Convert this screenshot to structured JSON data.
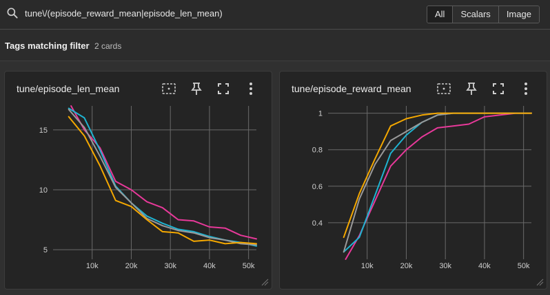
{
  "search": {
    "query": "tune\\/(episode_reward_mean|episode_len_mean)"
  },
  "filters": {
    "all": "All",
    "scalars": "Scalars",
    "image": "Image",
    "active": "All"
  },
  "tags": {
    "title": "Tags matching filter",
    "count": "2 cards"
  },
  "colors": {
    "background": "#303030",
    "card": "#242424",
    "grid": "#6a6a6a",
    "series_magenta": "#e8399a",
    "series_cyan": "#1fb3d1",
    "series_gray": "#9a9a9a",
    "series_orange": "#f5a800"
  },
  "cards": [
    {
      "title": "tune/episode_len_mean",
      "icons": [
        "fit-domain-icon",
        "pin-icon",
        "fullscreen-icon",
        "more-vert-icon"
      ],
      "chart_data": {
        "type": "line",
        "title": "tune/episode_len_mean",
        "xlabel": "",
        "ylabel": "",
        "x_ticks": [
          "10k",
          "20k",
          "30k",
          "40k",
          "50k"
        ],
        "y_ticks": [
          "5",
          "10",
          "15"
        ],
        "xlim": [
          0,
          52000
        ],
        "ylim": [
          4.2,
          17.0
        ],
        "grid": true,
        "series": [
          {
            "color": "#e8399a",
            "points": [
              [
                4600,
                17.0
              ],
              [
                8000,
                15.0
              ],
              [
                12000,
                13.5
              ],
              [
                16000,
                10.7
              ],
              [
                20000,
                10.0
              ],
              [
                24000,
                9.0
              ],
              [
                28000,
                8.5
              ],
              [
                32000,
                7.5
              ],
              [
                36000,
                7.4
              ],
              [
                40000,
                6.9
              ],
              [
                44000,
                6.8
              ],
              [
                48000,
                6.2
              ],
              [
                52000,
                5.9
              ]
            ]
          },
          {
            "color": "#1fb3d1",
            "points": [
              [
                4000,
                16.8
              ],
              [
                8000,
                16.0
              ],
              [
                12000,
                13.3
              ],
              [
                16000,
                10.3
              ],
              [
                20000,
                8.9
              ],
              [
                24000,
                7.8
              ],
              [
                28000,
                7.2
              ],
              [
                32000,
                6.7
              ],
              [
                36000,
                6.5
              ],
              [
                40000,
                6.1
              ],
              [
                44000,
                5.8
              ],
              [
                48000,
                5.6
              ],
              [
                52000,
                5.3
              ]
            ]
          },
          {
            "color": "#9a9a9a",
            "points": [
              [
                4000,
                16.7
              ],
              [
                8000,
                15.2
              ],
              [
                12000,
                12.8
              ],
              [
                16000,
                10.2
              ],
              [
                20000,
                8.9
              ],
              [
                24000,
                7.6
              ],
              [
                28000,
                7.0
              ],
              [
                32000,
                6.6
              ],
              [
                36000,
                6.4
              ],
              [
                40000,
                6.0
              ],
              [
                44000,
                5.8
              ],
              [
                48000,
                5.5
              ],
              [
                52000,
                5.4
              ]
            ]
          },
          {
            "color": "#f5a800",
            "points": [
              [
                4000,
                16.1
              ],
              [
                8000,
                14.5
              ],
              [
                12000,
                12.0
              ],
              [
                16000,
                9.1
              ],
              [
                20000,
                8.6
              ],
              [
                24000,
                7.5
              ],
              [
                28000,
                6.5
              ],
              [
                32000,
                6.4
              ],
              [
                36000,
                5.7
              ],
              [
                40000,
                5.8
              ],
              [
                44000,
                5.5
              ],
              [
                48000,
                5.6
              ],
              [
                52000,
                5.5
              ]
            ]
          }
        ]
      }
    },
    {
      "title": "tune/episode_reward_mean",
      "icons": [
        "fit-domain-icon",
        "pin-icon",
        "fullscreen-icon",
        "more-vert-icon"
      ],
      "chart_data": {
        "type": "line",
        "title": "tune/episode_reward_mean",
        "xlabel": "",
        "ylabel": "",
        "x_ticks": [
          "10k",
          "20k",
          "30k",
          "40k",
          "50k"
        ],
        "y_ticks": [
          "0.4",
          "0.6",
          "0.8",
          "1"
        ],
        "xlim": [
          0,
          52000
        ],
        "ylim": [
          0.2,
          1.04
        ],
        "grid": true,
        "series": [
          {
            "color": "#e8399a",
            "points": [
              [
                4500,
                0.2
              ],
              [
                8000,
                0.33
              ],
              [
                12000,
                0.52
              ],
              [
                16000,
                0.71
              ],
              [
                20000,
                0.8
              ],
              [
                24000,
                0.87
              ],
              [
                28000,
                0.92
              ],
              [
                32000,
                0.93
              ],
              [
                36000,
                0.94
              ],
              [
                40000,
                0.98
              ],
              [
                44000,
                0.99
              ],
              [
                48000,
                1.0
              ],
              [
                52000,
                1.0
              ]
            ]
          },
          {
            "color": "#1fb3d1",
            "points": [
              [
                4000,
                0.24
              ],
              [
                8000,
                0.32
              ],
              [
                12000,
                0.55
              ],
              [
                16000,
                0.78
              ],
              [
                20000,
                0.88
              ],
              [
                24000,
                0.95
              ],
              [
                28000,
                0.99
              ],
              [
                32000,
                1.0
              ],
              [
                36000,
                1.0
              ],
              [
                40000,
                1.0
              ],
              [
                44000,
                1.0
              ],
              [
                48000,
                1.0
              ],
              [
                52000,
                1.0
              ]
            ]
          },
          {
            "color": "#9a9a9a",
            "points": [
              [
                4000,
                0.24
              ],
              [
                8000,
                0.53
              ],
              [
                12000,
                0.72
              ],
              [
                16000,
                0.85
              ],
              [
                20000,
                0.9
              ],
              [
                24000,
                0.95
              ],
              [
                28000,
                0.99
              ],
              [
                32000,
                1.0
              ],
              [
                36000,
                1.0
              ],
              [
                40000,
                1.0
              ],
              [
                44000,
                1.0
              ],
              [
                48000,
                1.0
              ],
              [
                52000,
                1.0
              ]
            ]
          },
          {
            "color": "#f5a800",
            "points": [
              [
                4000,
                0.32
              ],
              [
                8000,
                0.56
              ],
              [
                12000,
                0.75
              ],
              [
                16000,
                0.93
              ],
              [
                20000,
                0.97
              ],
              [
                24000,
                0.99
              ],
              [
                28000,
                1.0
              ],
              [
                32000,
                1.0
              ],
              [
                36000,
                1.0
              ],
              [
                40000,
                1.0
              ],
              [
                44000,
                1.0
              ],
              [
                48000,
                1.0
              ],
              [
                52000,
                1.0
              ]
            ]
          }
        ]
      }
    }
  ]
}
